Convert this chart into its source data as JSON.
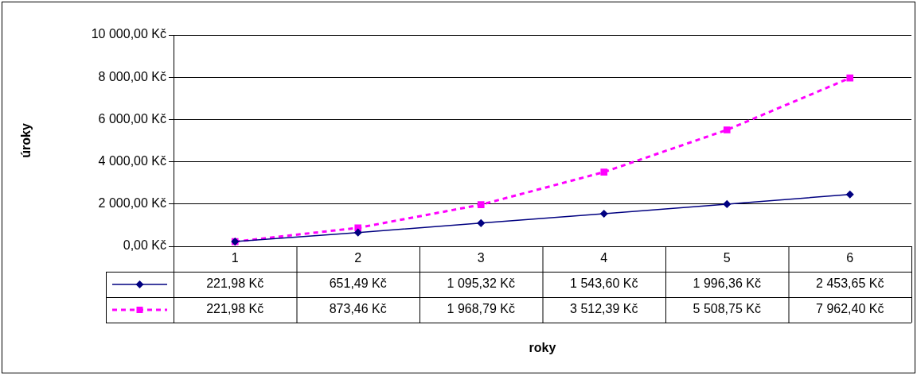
{
  "chart_data": {
    "type": "line",
    "annotations": [
      "roky"
    ],
    "ylabel": "úroky",
    "categories": [
      "1",
      "2",
      "3",
      "4",
      "5",
      "6"
    ],
    "series": [
      {
        "color": "#000080",
        "marker": "diamond",
        "line_style": "solid",
        "values": [
          221.98,
          651.49,
          1095.32,
          1543.6,
          1996.36,
          2453.65
        ],
        "value_labels": [
          "221,98 Kč",
          "651,49 Kč",
          "1 095,32 Kč",
          "1 543,60 Kč",
          "1 996,36 Kč",
          "2 453,65 Kč"
        ]
      },
      {
        "color": "#ff00ff",
        "marker": "square",
        "line_style": "dashed",
        "values": [
          221.98,
          873.46,
          1968.79,
          3512.39,
          5508.75,
          7962.4
        ],
        "value_labels": [
          "221,98 Kč",
          "873,46 Kč",
          "1 968,79 Kč",
          "3 512,39 Kč",
          "5 508,75 Kč",
          "7 962,40 Kč"
        ]
      }
    ],
    "ylim": [
      0,
      10000
    ],
    "yticks": [
      {
        "value": 0,
        "label": "0,00 Kč"
      },
      {
        "value": 2000,
        "label": "2 000,00 Kč"
      },
      {
        "value": 4000,
        "label": "4 000,00 Kč"
      },
      {
        "value": 6000,
        "label": "6 000,00 Kč"
      },
      {
        "value": 8000,
        "label": "8 000,00 Kč"
      },
      {
        "value": 10000,
        "label": "10 000,00 Kč"
      }
    ],
    "grid": "y",
    "legend": false
  }
}
